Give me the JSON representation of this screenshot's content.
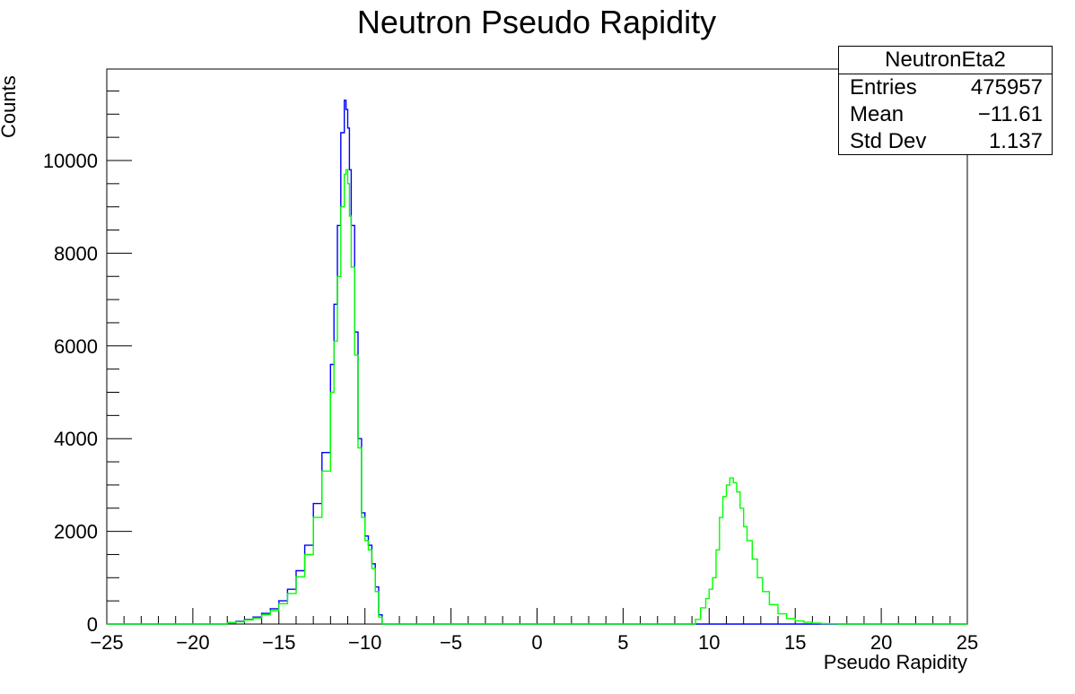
{
  "chart_data": {
    "type": "histogram",
    "title": "Neutron Pseudo Rapidity",
    "xlabel": "Pseudo Rapidity",
    "ylabel": "Counts",
    "xlim": [
      -25,
      25
    ],
    "ylim": [
      0,
      12000
    ],
    "x_ticks": [
      -25,
      -20,
      -15,
      -10,
      -5,
      0,
      5,
      10,
      15,
      20,
      25
    ],
    "x_tick_labels": [
      "−25",
      "−20",
      "−15",
      "−10",
      "−5",
      "0",
      "5",
      "10",
      "15",
      "20",
      "25"
    ],
    "y_ticks": [
      0,
      2000,
      4000,
      6000,
      8000,
      10000
    ],
    "y_tick_labels": [
      "0",
      "2000",
      "4000",
      "6000",
      "8000",
      "10000"
    ],
    "grid": false,
    "stats": {
      "name": "NeutronEta2",
      "rows": [
        {
          "label": "Entries",
          "value": "475957"
        },
        {
          "label": "Mean",
          "value": "−11.61"
        },
        {
          "label": "Std Dev",
          "value": "1.137"
        }
      ]
    },
    "series": [
      {
        "name": "blue",
        "color": "#0000ff",
        "x": [
          -25,
          -18.5,
          -18,
          -17.5,
          -17,
          -16.5,
          -16,
          -15.5,
          -15,
          -14.5,
          -14,
          -13.5,
          -13,
          -12.5,
          -12,
          -11.8,
          -11.6,
          -11.4,
          -11.2,
          -11.1,
          -11.0,
          -10.9,
          -10.8,
          -10.6,
          -10.4,
          -10.2,
          -10.0,
          -9.8,
          -9.6,
          -9.4,
          -9.2,
          -9.0,
          -8.8,
          25
        ],
        "values": [
          0,
          0,
          30,
          60,
          100,
          150,
          230,
          330,
          500,
          750,
          1150,
          1700,
          2600,
          3700,
          5600,
          6900,
          8600,
          10600,
          11300,
          11100,
          10700,
          9800,
          8600,
          6300,
          4000,
          2400,
          1900,
          1700,
          1300,
          800,
          200,
          0,
          0,
          0
        ]
      },
      {
        "name": "green",
        "color": "#00ff00",
        "x": [
          -25,
          -18.5,
          -18,
          -17.5,
          -17,
          -16.5,
          -16,
          -15.5,
          -15,
          -14.5,
          -14,
          -13.5,
          -13,
          -12.5,
          -12,
          -11.8,
          -11.6,
          -11.4,
          -11.2,
          -11.1,
          -11.0,
          -10.9,
          -10.8,
          -10.6,
          -10.4,
          -10.2,
          -10.0,
          -9.8,
          -9.6,
          -9.4,
          -9.2,
          -9.0,
          -8.8,
          9,
          9.2,
          9.5,
          9.8,
          10.0,
          10.2,
          10.4,
          10.6,
          10.8,
          11.0,
          11.2,
          11.4,
          11.6,
          11.8,
          12.0,
          12.2,
          12.5,
          12.8,
          13.1,
          13.5,
          14.0,
          14.5,
          15.0,
          15.5,
          16.0,
          16.5,
          17.0,
          17.5,
          18.0,
          25
        ],
        "values": [
          0,
          0,
          25,
          50,
          90,
          130,
          200,
          290,
          440,
          660,
          1020,
          1500,
          2300,
          3300,
          5000,
          6100,
          7500,
          9000,
          9700,
          9800,
          9500,
          8800,
          7700,
          5800,
          3800,
          2300,
          1800,
          1600,
          1200,
          700,
          150,
          0,
          0,
          0,
          100,
          350,
          550,
          750,
          1000,
          1600,
          2300,
          2750,
          3000,
          3150,
          3050,
          2850,
          2500,
          2100,
          1800,
          1400,
          1000,
          700,
          420,
          220,
          120,
          70,
          40,
          20,
          10,
          5,
          0,
          0,
          0
        ]
      }
    ]
  }
}
